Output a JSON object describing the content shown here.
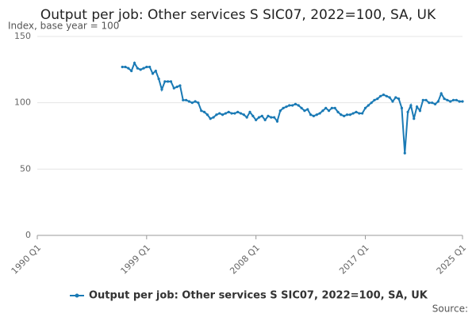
{
  "chart_data": {
    "type": "line",
    "title": "Output per job: Other services S SIC07, 2022=100, SA, UK",
    "subtitle": "Index, base year = 100",
    "source": "Source:",
    "categories": [
      "1990 Q1",
      null,
      null,
      null,
      null,
      null,
      null,
      null,
      null,
      null,
      null,
      null,
      null,
      null,
      null,
      null,
      null,
      null,
      null,
      null,
      null,
      null,
      null,
      null,
      null,
      null,
      null,
      null,
      null,
      null,
      null,
      null,
      null,
      null,
      null,
      null,
      "1999 Q1",
      null,
      null,
      null,
      null,
      null,
      null,
      null,
      null,
      null,
      null,
      null,
      null,
      null,
      null,
      null,
      null,
      null,
      null,
      null,
      null,
      null,
      null,
      null,
      null,
      null,
      null,
      null,
      null,
      null,
      null,
      null,
      null,
      null,
      null,
      null,
      "2008 Q1",
      null,
      null,
      null,
      null,
      null,
      null,
      null,
      null,
      null,
      null,
      null,
      null,
      null,
      null,
      null,
      null,
      null,
      null,
      null,
      null,
      null,
      null,
      null,
      null,
      null,
      null,
      null,
      null,
      null,
      null,
      null,
      null,
      null,
      null,
      null,
      "2017 Q1",
      null,
      null,
      null,
      null,
      null,
      null,
      null,
      null,
      null,
      null,
      null,
      null,
      null,
      null,
      null,
      null,
      null,
      null,
      null,
      null,
      null,
      null,
      null,
      null,
      null,
      null,
      null,
      null,
      null,
      null,
      null,
      "2025 Q1"
    ],
    "series": [
      {
        "name": "Output per job: Other services S SIC07, 2022=100, SA, UK",
        "color": "#1a7ab5",
        "values": [
          null,
          null,
          null,
          null,
          null,
          null,
          null,
          null,
          null,
          null,
          null,
          null,
          null,
          null,
          null,
          null,
          null,
          null,
          null,
          null,
          null,
          null,
          null,
          null,
          null,
          null,
          null,
          null,
          127,
          127,
          126,
          124,
          130,
          126,
          125,
          126,
          127,
          127,
          122,
          124,
          118,
          110,
          116,
          116,
          116,
          111,
          112,
          113,
          102,
          102,
          101,
          100,
          101,
          100,
          94,
          93,
          91,
          88,
          89,
          91,
          92,
          91,
          92,
          93,
          92,
          92,
          93,
          92,
          91,
          89,
          93,
          90,
          87,
          89,
          90,
          87,
          90,
          89,
          89,
          86,
          94,
          96,
          97,
          98,
          98,
          99,
          98,
          96,
          94,
          95,
          91,
          90,
          91,
          92,
          94,
          96,
          94,
          96,
          96,
          93,
          91,
          90,
          91,
          91,
          92,
          93,
          92,
          92,
          96,
          98,
          100,
          102,
          103,
          105,
          106,
          105,
          104,
          101,
          104,
          103,
          96,
          62,
          93,
          98,
          88,
          97,
          94,
          102,
          102,
          100,
          100,
          99,
          101,
          107,
          103,
          102,
          101,
          102,
          102,
          101,
          101
        ]
      }
    ],
    "ylim": [
      0,
      150
    ],
    "yticks": [
      0,
      50,
      100,
      150
    ],
    "grid": true,
    "legend": "bottom"
  }
}
